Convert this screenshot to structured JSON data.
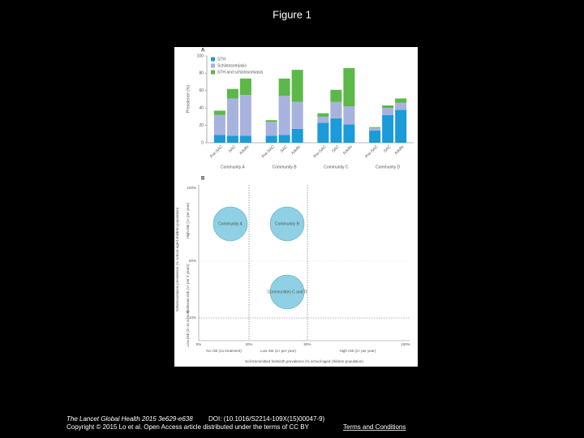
{
  "title": "Figure 1",
  "chart_data": {
    "type": "bar",
    "stacked": true,
    "panel_label": "A",
    "ylabel": "Prevalence (%)",
    "groups": [
      "Community A",
      "Community B",
      "Community C",
      "Community D"
    ],
    "categories": [
      "Pre-SAC",
      "SAC",
      "Adults",
      "Pre-SAC",
      "SAC",
      "Adults",
      "Pre-SAC",
      "SAC",
      "Adults",
      "Pre-SAC",
      "SAC",
      "Adults"
    ],
    "series": [
      {
        "name": "STH",
        "color": "#1b9bd7",
        "values": [
          9,
          8,
          8,
          8,
          9,
          16,
          23,
          28,
          21,
          14,
          32,
          38
        ]
      },
      {
        "name": "Schistosomiasis",
        "color": "#a8b2de",
        "values": [
          23,
          43,
          47,
          16,
          45,
          31,
          7,
          19,
          21,
          3,
          8,
          8
        ]
      },
      {
        "name": "STH and schistosomiasis",
        "color": "#5cb848",
        "values": [
          5,
          11,
          19,
          2,
          20,
          37,
          4,
          14,
          44,
          1,
          3,
          5
        ]
      }
    ],
    "ylim": [
      0,
      100
    ],
    "yticks": [
      0,
      20,
      40,
      60,
      80,
      100
    ],
    "grid": false,
    "legend": "upper left"
  },
  "panel_b": {
    "label": "B",
    "y_axis_label": "Schistosomiasis prevalence (% school-aged children population)",
    "x_axis_label": "Soil-transmitted helminth prevalence (% school-aged children population)",
    "y_ticks": [
      "100%",
      "50%",
      "10%"
    ],
    "x_ticks": [
      "0%",
      "20%",
      "50%",
      "100%"
    ],
    "y_risk_labels": [
      "High risk (1× per year)",
      "Moderate risk (1× per 2 years)",
      "Low risk (2× in school)"
    ],
    "x_risk_labels": [
      "No risk (no treatment)",
      "Low risk (1× per year)",
      "High risk (2× per year)"
    ],
    "bubbles": [
      "Community A",
      "Community B",
      "Communities C and D"
    ]
  },
  "footer": {
    "journal": "The Lancet Global Health 2015 3e629-e638",
    "doi": "DOI: (10.1016/S2214-109X(15)00047-9)",
    "copyright": "Copyright © 2015 Lo et al. Open Access article distributed under the terms of CC BY",
    "link": "Terms and Conditions"
  }
}
